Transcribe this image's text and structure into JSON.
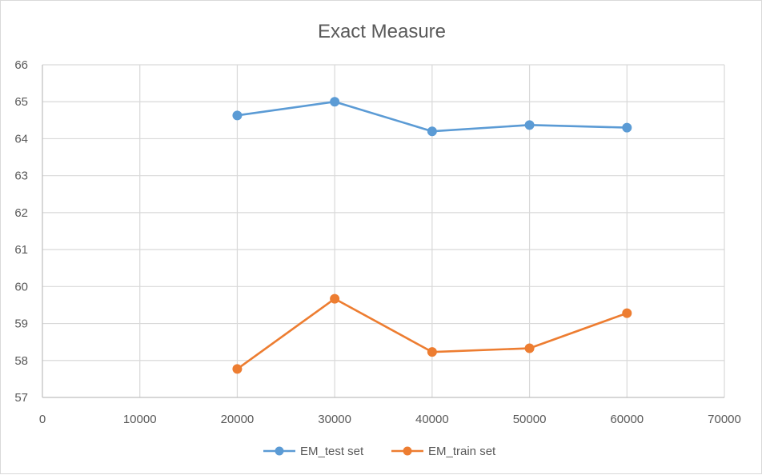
{
  "chart_data": {
    "type": "scatter",
    "title": "Exact Measure",
    "xlabel": "",
    "ylabel": "",
    "xlim": [
      0,
      70000
    ],
    "ylim": [
      57,
      66
    ],
    "x_ticks": [
      0,
      10000,
      20000,
      30000,
      40000,
      50000,
      60000,
      70000
    ],
    "y_ticks": [
      57,
      58,
      59,
      60,
      61,
      62,
      63,
      64,
      65,
      66
    ],
    "grid": true,
    "legend_position": "bottom",
    "series": [
      {
        "name": "EM_test set",
        "color": "#5b9bd5",
        "x": [
          20000,
          30000,
          40000,
          50000,
          60000
        ],
        "values": [
          64.63,
          65.0,
          64.2,
          64.37,
          64.3
        ]
      },
      {
        "name": "EM_train set",
        "color": "#ed7d31",
        "x": [
          20000,
          30000,
          40000,
          50000,
          60000
        ],
        "values": [
          57.77,
          59.67,
          58.23,
          58.33,
          59.28
        ]
      }
    ]
  }
}
